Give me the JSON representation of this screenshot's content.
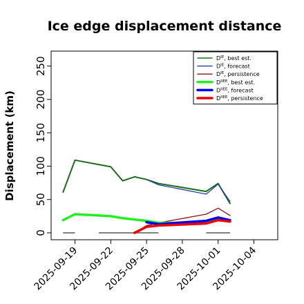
{
  "chart_data": {
    "type": "line",
    "title": "Ice edge displacement distance",
    "ylabel": "Displacement (km)",
    "xlabel": "",
    "ylim": [
      0,
      260
    ],
    "xlim": [
      "2025-09-17",
      "2025-10-06"
    ],
    "yticks": [
      "0",
      "50",
      "100",
      "150",
      "200",
      "250"
    ],
    "xticks": [
      {
        "date": "2025-09-19",
        "label": "2025-09-19",
        "color": "#000000"
      },
      {
        "date": "2025-09-22",
        "label": "2025-09-22",
        "color": "#000000"
      },
      {
        "date": "2025-09-25",
        "label": "2025-09-25",
        "color": "#228B22"
      },
      {
        "date": "2025-09-28",
        "label": "2025-09-28",
        "color": "#000000"
      },
      {
        "date": "2025-10-01",
        "label": "2025-10-01",
        "color": "#000000"
      },
      {
        "date": "2025-10-04",
        "label": "2025-10-04",
        "color": "#000000"
      }
    ],
    "grid": false,
    "legend_position": "top-right",
    "legend": [
      {
        "label": "D",
        "sup": "IE",
        "tail": ", best est.",
        "color": "#1a6b1a",
        "bold": false
      },
      {
        "label": "D",
        "sup": "IE",
        "tail": ", forecast",
        "color": "#1f3ea8",
        "bold": false
      },
      {
        "label": "D",
        "sup": "IE",
        "tail": ", persistence",
        "color": "#8b1010",
        "bold": false
      },
      {
        "label": "D",
        "sup": "IIEE",
        "tail": ", best est.",
        "color": "#22ee22",
        "bold": true
      },
      {
        "label": "D",
        "sup": "IIEE",
        "tail": ", forecast",
        "color": "#0000ee",
        "bold": true
      },
      {
        "label": "D",
        "sup": "IIEE",
        "tail": ", persistence",
        "color": "#ee0000",
        "bold": true
      }
    ],
    "series": [
      {
        "name": "DIE, best est.",
        "color": "#1a6b1a",
        "width": 2,
        "points": [
          [
            "2025-09-18",
            61
          ],
          [
            "2025-09-19",
            109
          ],
          [
            "2025-09-22",
            99
          ],
          [
            "2025-09-23",
            78
          ],
          [
            "2025-09-24",
            84
          ],
          [
            "2025-09-25",
            80
          ],
          [
            "2025-09-26",
            74
          ],
          [
            "2025-09-30",
            62
          ],
          [
            "2025-10-01",
            74
          ],
          [
            "2025-10-02",
            44
          ]
        ]
      },
      {
        "name": "DIE, forecast",
        "color": "#1f3ea8",
        "width": 1.3,
        "points": [
          [
            "2025-09-25",
            80
          ],
          [
            "2025-09-26",
            72
          ],
          [
            "2025-09-30",
            58
          ],
          [
            "2025-10-01",
            73
          ],
          [
            "2025-10-02",
            47
          ]
        ]
      },
      {
        "name": "DIE, persistence",
        "color": "#8b1010",
        "width": 1.3,
        "points": [
          [
            "2025-09-24",
            0
          ],
          [
            "2025-09-25",
            11
          ],
          [
            "2025-09-26",
            15
          ],
          [
            "2025-09-30",
            28
          ],
          [
            "2025-10-01",
            37
          ],
          [
            "2025-10-02",
            26
          ]
        ]
      },
      {
        "name": "DIIEE, best est.",
        "color": "#22ee22",
        "width": 3.5,
        "points": [
          [
            "2025-09-18",
            19
          ],
          [
            "2025-09-19",
            28
          ],
          [
            "2025-09-22",
            25
          ],
          [
            "2025-09-23",
            22
          ],
          [
            "2025-09-24",
            20
          ],
          [
            "2025-09-25",
            18
          ],
          [
            "2025-09-26",
            15
          ],
          [
            "2025-09-30",
            15
          ],
          [
            "2025-10-01",
            20
          ],
          [
            "2025-10-02",
            17
          ]
        ]
      },
      {
        "name": "DIIEE, forecast",
        "color": "#0000ee",
        "width": 3.5,
        "points": [
          [
            "2025-09-25",
            16
          ],
          [
            "2025-09-26",
            13
          ],
          [
            "2025-09-30",
            18
          ],
          [
            "2025-10-01",
            23
          ],
          [
            "2025-10-02",
            19
          ]
        ]
      },
      {
        "name": "DIIEE, persistence",
        "color": "#ee0000",
        "width": 3.5,
        "points": [
          [
            "2025-09-24",
            0
          ],
          [
            "2025-09-25",
            9
          ],
          [
            "2025-09-26",
            11
          ],
          [
            "2025-09-30",
            14
          ],
          [
            "2025-10-01",
            19
          ],
          [
            "2025-10-02",
            17
          ]
        ]
      }
    ],
    "zero_marks": {
      "color": "#555555",
      "segments": [
        [
          "2025-09-18",
          "2025-09-19"
        ],
        [
          "2025-09-21",
          "2025-09-26"
        ],
        [
          "2025-09-30",
          "2025-10-02"
        ]
      ]
    }
  }
}
